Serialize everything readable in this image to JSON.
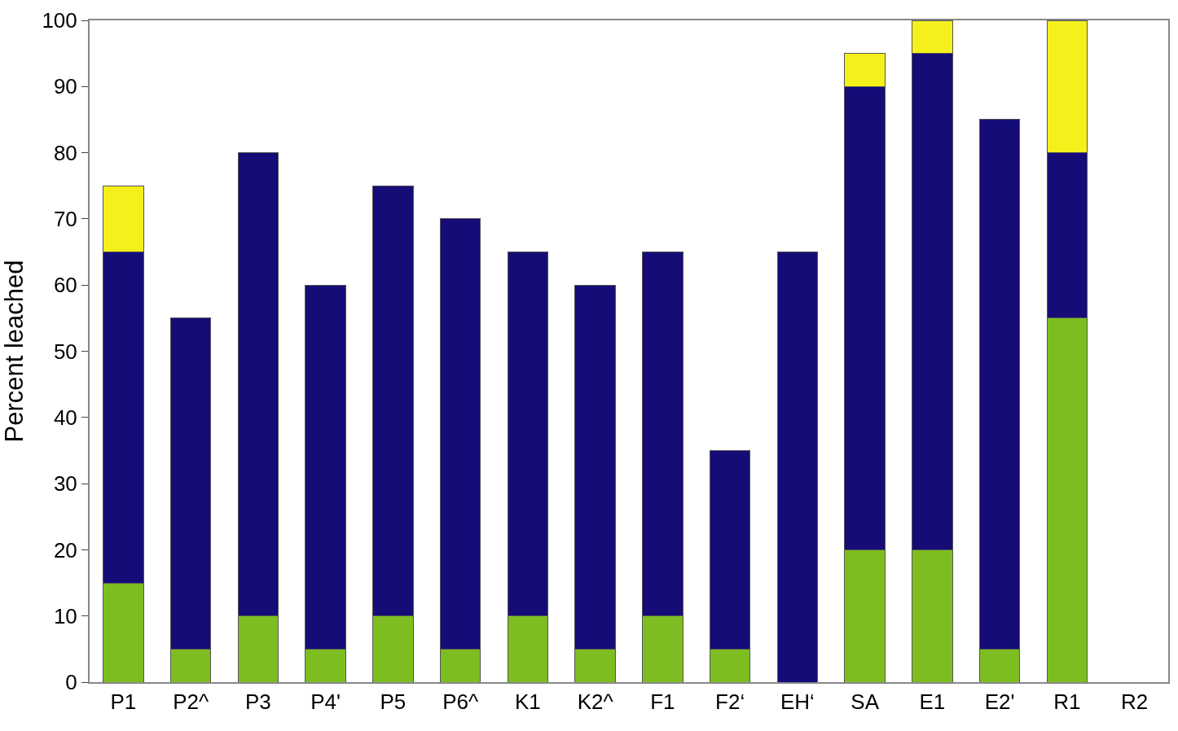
{
  "chart_data": {
    "type": "bar",
    "stacked": true,
    "ylabel": "Percent leached",
    "categories": [
      "P1",
      "P2^",
      "P3",
      "P4'",
      "P5",
      "P6^",
      "K1",
      "K2^",
      "F1",
      "F2‘",
      "EH‘",
      "SA",
      "E1",
      "E2'",
      "R1",
      "R2"
    ],
    "series": [
      {
        "color": "#7dbd22",
        "values": [
          15,
          5,
          10,
          5,
          10,
          5,
          10,
          5,
          10,
          5,
          null,
          20,
          20,
          5,
          55,
          null
        ]
      },
      {
        "color": "#150c78",
        "values": [
          50,
          50,
          70,
          55,
          65,
          65,
          55,
          55,
          55,
          30,
          65,
          70,
          75,
          80,
          25,
          null
        ]
      },
      {
        "color": "#f5f01c",
        "values": [
          10,
          null,
          null,
          null,
          null,
          null,
          null,
          null,
          null,
          null,
          null,
          5,
          5,
          null,
          20,
          null
        ]
      }
    ],
    "ylim": [
      0,
      100
    ],
    "yticks": [
      0,
      10,
      20,
      30,
      40,
      50,
      60,
      70,
      80,
      90,
      100
    ]
  }
}
